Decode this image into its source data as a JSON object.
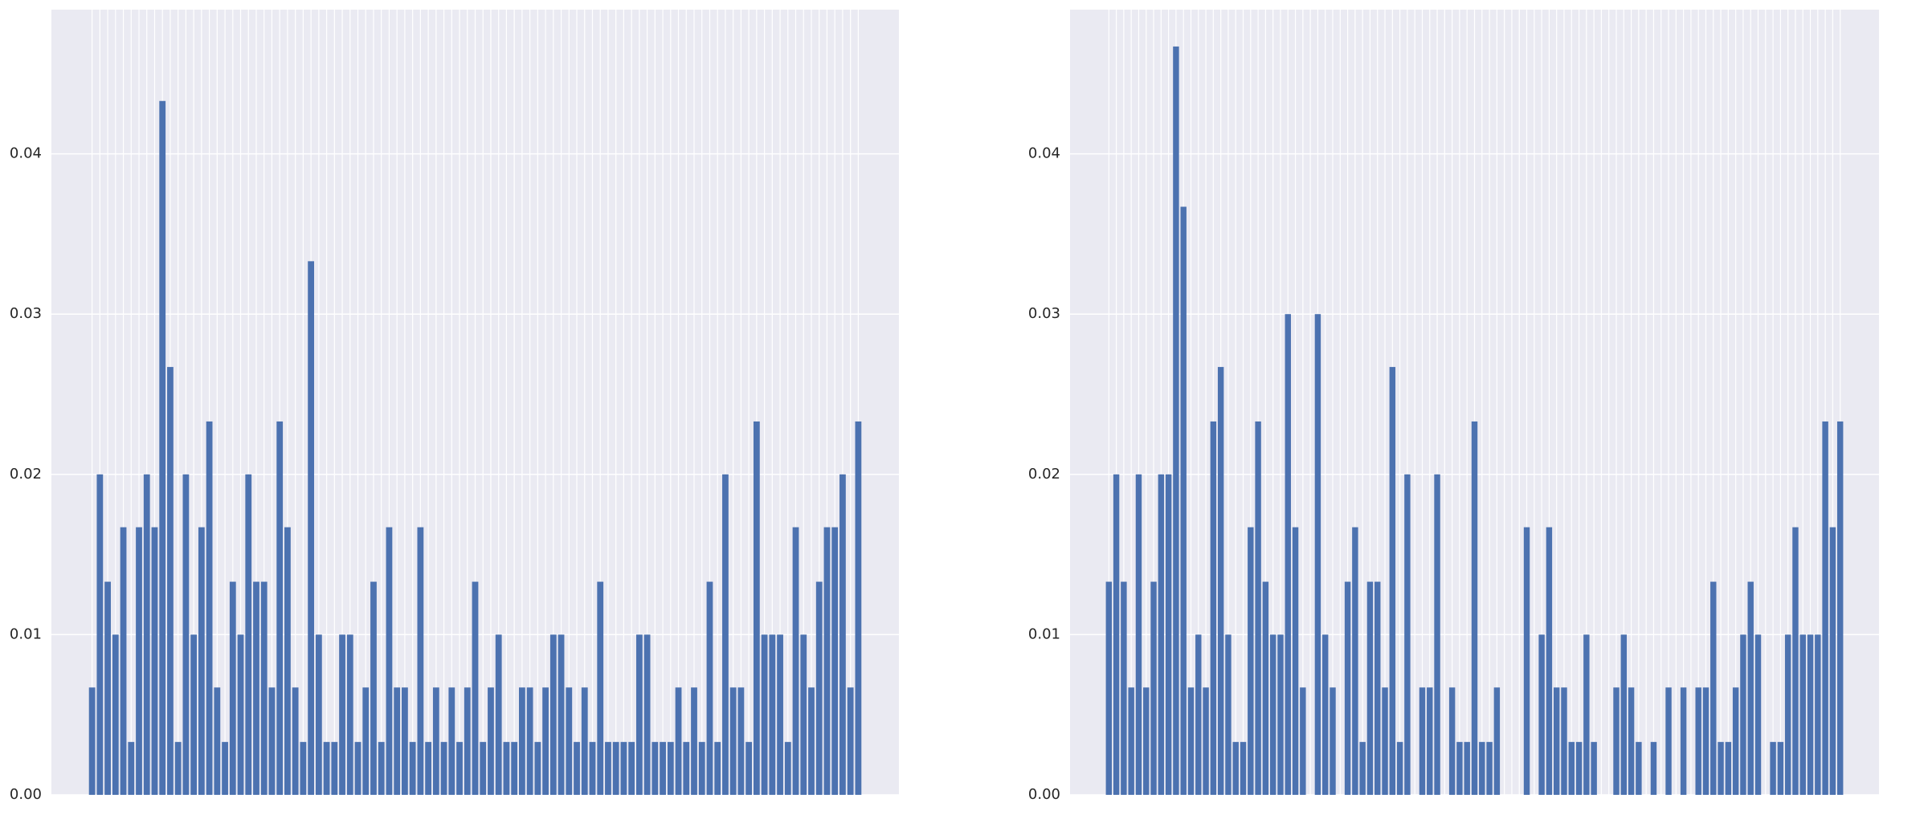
{
  "chart_data": [
    {
      "type": "bar",
      "color": "#4c72b0",
      "grid": true,
      "ylim": [
        0,
        0.049
      ],
      "yticks": [
        {
          "value": 0,
          "label": "0.00"
        },
        0.01,
        0.02,
        0.03,
        0.04
      ],
      "categories": [
        null,
        null,
        null,
        null,
        null,
        null,
        null,
        null,
        null,
        null,
        null,
        null,
        null,
        null,
        null,
        null,
        null,
        null,
        null,
        null,
        null,
        null,
        null,
        null,
        null,
        null,
        null,
        null,
        null,
        null,
        null,
        null,
        null,
        null,
        null,
        null,
        null,
        null,
        null,
        null,
        null,
        null,
        null,
        null,
        null,
        null,
        null,
        null,
        null,
        null,
        null,
        null,
        null,
        null,
        null,
        null,
        null,
        null,
        null,
        null,
        null,
        null,
        null,
        null,
        null,
        null,
        null,
        null,
        null,
        null,
        null,
        null,
        null,
        null,
        null,
        null,
        null,
        null,
        null,
        null,
        null,
        null,
        null,
        null,
        null,
        null,
        null,
        null,
        null,
        null,
        null,
        null,
        null,
        null,
        null,
        null,
        null,
        null,
        null
      ],
      "values": [
        0.0067,
        0.02,
        0.0133,
        0.01,
        0.0167,
        0.0033,
        0.0167,
        0.02,
        0.0167,
        0.0433,
        0.0267,
        0.0033,
        0.02,
        0.01,
        0.0167,
        0.0233,
        0.0067,
        0.0033,
        0.0133,
        0.01,
        0.02,
        0.0133,
        0.0133,
        0.0067,
        0.0233,
        0.0167,
        0.0067,
        0.0033,
        0.0333,
        0.01,
        0.0033,
        0.0033,
        0.01,
        0.01,
        0.0033,
        0.0067,
        0.0133,
        0.0033,
        0.0167,
        0.0067,
        0.0067,
        0.0033,
        0.0167,
        0.0033,
        0.0067,
        0.0033,
        0.0067,
        0.0033,
        0.0067,
        0.0133,
        0.0033,
        0.0067,
        0.01,
        0.0033,
        0.0033,
        0.0067,
        0.0067,
        0.0033,
        0.0067,
        0.01,
        0.01,
        0.0067,
        0.0033,
        0.0067,
        0.0033,
        0.0133,
        0.0033,
        0.0033,
        0.0033,
        0.0033,
        0.01,
        0.01,
        0.0033,
        0.0033,
        0.0033,
        0.0067,
        0.0033,
        0.0067,
        0.0033,
        0.0133,
        0.0033,
        0.02,
        0.0067,
        0.0067,
        0.0033,
        0.0233,
        0.01,
        0.01,
        0.01,
        0.0033,
        0.0167,
        0.01,
        0.0067,
        0.0133,
        0.0167,
        0.0167,
        0.02,
        0.0067,
        0.0233
      ]
    },
    {
      "type": "bar",
      "color": "#4c72b0",
      "grid": true,
      "ylim": [
        0,
        0.049
      ],
      "yticks": [
        {
          "value": 0,
          "label": "0.00"
        },
        0.01,
        0.02,
        0.03,
        0.04
      ],
      "categories": [
        null,
        null,
        null,
        null,
        null,
        null,
        null,
        null,
        null,
        null,
        null,
        null,
        null,
        null,
        null,
        null,
        null,
        null,
        null,
        null,
        null,
        null,
        null,
        null,
        null,
        null,
        null,
        null,
        null,
        null,
        null,
        null,
        null,
        null,
        null,
        null,
        null,
        null,
        null,
        null,
        null,
        null,
        null,
        null,
        null,
        null,
        null,
        null,
        null,
        null,
        null,
        null,
        null,
        null,
        null,
        null,
        null,
        null,
        null,
        null,
        null,
        null,
        null,
        null,
        null,
        null,
        null,
        null,
        null,
        null,
        null,
        null,
        null,
        null,
        null,
        null,
        null,
        null,
        null,
        null,
        null,
        null,
        null,
        null,
        null,
        null,
        null,
        null,
        null,
        null,
        null,
        null,
        null,
        null,
        null,
        null,
        null,
        null,
        null
      ],
      "values": [
        0.0133,
        0.02,
        0.0133,
        0.0067,
        0.02,
        0.0067,
        0.0133,
        0.02,
        0.02,
        0.0467,
        0.0367,
        0.0067,
        0.01,
        0.0067,
        0.0233,
        0.0267,
        0.01,
        0.0033,
        0.0033,
        0.0167,
        0.0233,
        0.0133,
        0.01,
        0.01,
        0.03,
        0.0167,
        0.0067,
        0,
        0.03,
        0.01,
        0.0067,
        0,
        0.0133,
        0.0167,
        0.0033,
        0.0133,
        0.0133,
        0.0067,
        0.0267,
        0.0033,
        0.02,
        0,
        0.0067,
        0.0067,
        0.02,
        0,
        0.0067,
        0.0033,
        0.0033,
        0.0233,
        0.0033,
        0.0033,
        0.0067,
        0,
        0,
        0,
        0.0167,
        0,
        0.01,
        0.0167,
        0.0067,
        0.0067,
        0.0033,
        0.0033,
        0.01,
        0.0033,
        0,
        0,
        0.0067,
        0.01,
        0.0067,
        0.0033,
        0,
        0.0033,
        0,
        0.0067,
        0,
        0.0067,
        0,
        0.0067,
        0.0067,
        0.0133,
        0.0033,
        0.0033,
        0.0067,
        0.01,
        0.0133,
        0.01,
        0,
        0.0033,
        0.0033,
        0.01,
        0.0167,
        0.01,
        0.01,
        0.01,
        0.0233,
        0.0167,
        0.0233
      ]
    }
  ]
}
